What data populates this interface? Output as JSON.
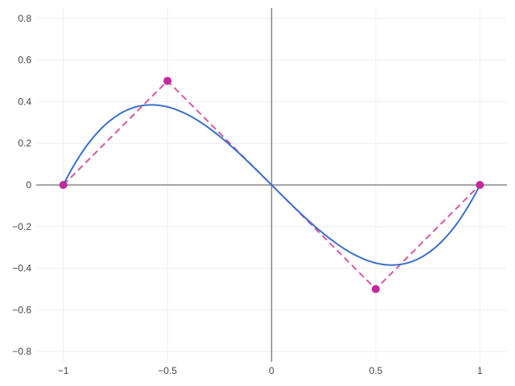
{
  "chart_data": {
    "type": "line",
    "title": "",
    "xlabel": "",
    "ylabel": "",
    "xlim": [
      -1.13,
      1.13
    ],
    "ylim": [
      -0.85,
      0.85
    ],
    "grid": true,
    "x_ticks": [
      -1,
      -0.5,
      0,
      0.5,
      1
    ],
    "x_tick_labels": [
      "−1",
      "−0.5",
      "0",
      "0.5",
      "1"
    ],
    "y_ticks": [
      -0.8,
      -0.6,
      -0.4,
      -0.2,
      0,
      0.2,
      0.4,
      0.6,
      0.8
    ],
    "y_tick_labels": [
      "−0.8",
      "−0.6",
      "−0.4",
      "−0.2",
      "0",
      "0.2",
      "0.4",
      "0.6",
      "0.8"
    ],
    "series": [
      {
        "style": "dashed-with-markers",
        "color": "#d6589f",
        "marker_color": "#c2299e",
        "x": [
          -1,
          -0.5,
          0.5,
          1
        ],
        "y": [
          0,
          0.5,
          -0.5,
          0
        ]
      },
      {
        "style": "solid",
        "color": "#3b6fc8",
        "function": "y = x^3 - x",
        "x": [
          -1,
          -0.9,
          -0.8,
          -0.7,
          -0.6,
          -0.577,
          -0.5,
          -0.4,
          -0.3,
          -0.2,
          -0.1,
          0,
          0.1,
          0.2,
          0.3,
          0.4,
          0.5,
          0.577,
          0.6,
          0.7,
          0.8,
          0.9,
          1
        ],
        "y": [
          0,
          0.171,
          0.288,
          0.357,
          0.384,
          0.385,
          0.375,
          0.336,
          0.273,
          0.192,
          0.099,
          0,
          -0.099,
          -0.192,
          -0.273,
          -0.336,
          -0.375,
          -0.385,
          -0.384,
          -0.357,
          -0.288,
          -0.171,
          0
        ]
      }
    ]
  }
}
